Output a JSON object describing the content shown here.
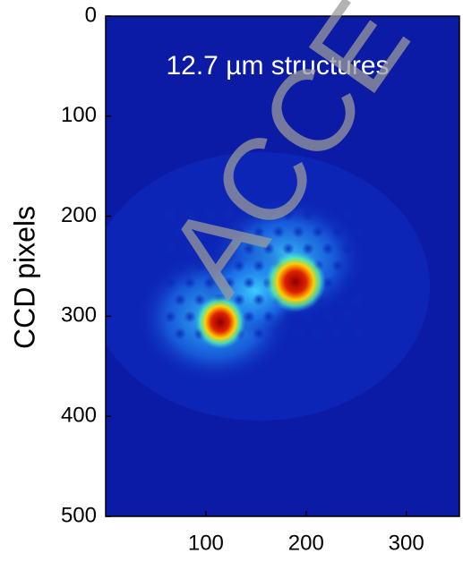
{
  "chart_data": {
    "type": "heatmap",
    "annotation": "12.7 µm structures",
    "ylabel": "CCD pixels",
    "watermark": "ACCE",
    "xlim": [
      0,
      353
    ],
    "xticks": [
      100,
      200,
      300
    ],
    "ylim": [
      500,
      0
    ],
    "yticks": [
      0,
      100,
      200,
      300,
      400,
      500
    ]
  }
}
